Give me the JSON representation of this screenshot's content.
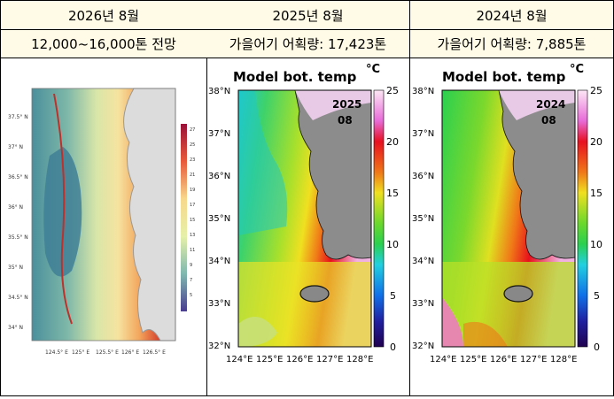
{
  "columns": [
    {
      "title": "2026년 8월",
      "subtitle": "12,000~16,000톤 전망"
    },
    {
      "title": "2025년 8월",
      "subtitle": "가을어기 어획량: 17,423톤"
    },
    {
      "title": "2024년 8월",
      "subtitle": "가을어기 어획량: 7,885톤"
    }
  ],
  "forecast_map": {
    "lat_labels": [
      "37.5° N",
      "37° N",
      "36.5° N",
      "36° N",
      "35.5° N",
      "35° N",
      "34.5° N",
      "34° N"
    ],
    "lon_labels": [
      "124.5° E",
      "125° E",
      "125.5° E",
      "126° E",
      "126.5° E"
    ],
    "colorbar_ticks": [
      "27",
      "25",
      "23",
      "21",
      "19",
      "17",
      "15",
      "13",
      "11",
      "9",
      "7",
      "5"
    ]
  },
  "model_maps": {
    "title": "Model bot. temp",
    "title_unit": "°C",
    "lat_labels": [
      "38°N",
      "37°N",
      "36°N",
      "35°N",
      "34°N",
      "33°N",
      "32°N"
    ],
    "lon_labels": [
      "124°E",
      "125°E",
      "126°E",
      "127°E",
      "128°E"
    ],
    "colorbar_ticks": [
      "25",
      "20",
      "15",
      "10",
      "5",
      "0"
    ],
    "stamps": [
      {
        "year": "2025",
        "month": "08"
      },
      {
        "year": "2024",
        "month": "08"
      }
    ]
  }
}
